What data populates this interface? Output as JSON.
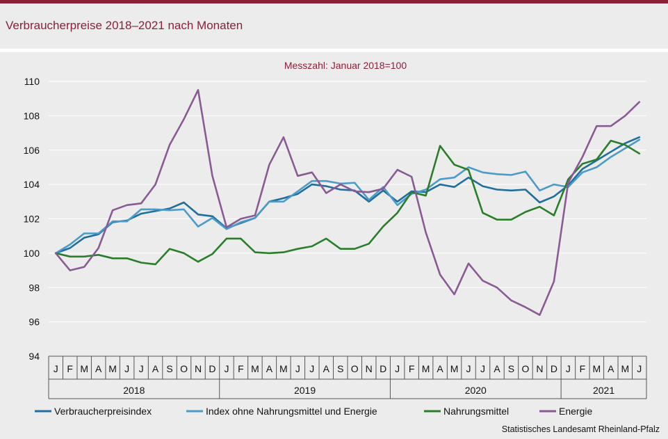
{
  "title": "Verbraucherpreise 2018–2021 nach Monaten",
  "credit": "Statistisches Landesamt Rheinland-Pfalz",
  "colors": {
    "accent": "#8b1f3a",
    "Verbraucherpreisindex": "#1f6e9e",
    "Index ohne Nahrungsmittel und Energie": "#4c9ac9",
    "Nahrungsmittel": "#2a7d2a",
    "Energie": "#8a5a95"
  },
  "chart_data": {
    "type": "line",
    "subtitle": "Messzahl:  Januar  2018=100",
    "ylim": [
      94,
      110
    ],
    "yticks": [
      "94",
      "96",
      "98",
      "100",
      "102",
      "104",
      "106",
      "108",
      "110"
    ],
    "month_labels": [
      "J",
      "F",
      "M",
      "A",
      "M",
      "J",
      "J",
      "A",
      "S",
      "O",
      "N",
      "D",
      "J",
      "F",
      "M",
      "A",
      "M",
      "J",
      "J",
      "A",
      "S",
      "O",
      "N",
      "D",
      "J",
      "F",
      "M",
      "A",
      "M",
      "J",
      "J",
      "A",
      "S",
      "O",
      "N",
      "D",
      "J",
      "F",
      "M",
      "A",
      "M",
      "J"
    ],
    "years": [
      "2018",
      "2019",
      "2020",
      "2021"
    ],
    "grid": true,
    "legend_position": "bottom",
    "series": [
      {
        "name": "Verbraucherpreisindex",
        "values": [
          100.0,
          100.3,
          100.9,
          101.1,
          101.8,
          101.9,
          102.3,
          102.45,
          102.6,
          102.95,
          102.25,
          102.15,
          101.45,
          101.75,
          102.05,
          103.0,
          103.2,
          103.45,
          104.0,
          103.9,
          103.7,
          103.65,
          103.0,
          103.65,
          103.0,
          103.6,
          103.55,
          104.0,
          103.85,
          104.4,
          103.9,
          103.7,
          103.65,
          103.7,
          102.95,
          103.3,
          103.95,
          104.9,
          105.4,
          105.9,
          106.4,
          106.75
        ]
      },
      {
        "name": "Index ohne Nahrungsmittel und Energie",
        "values": [
          100.0,
          100.5,
          101.15,
          101.15,
          101.85,
          101.85,
          102.55,
          102.55,
          102.5,
          102.55,
          101.55,
          102.05,
          101.4,
          101.8,
          102.05,
          103.0,
          103.0,
          103.6,
          104.2,
          104.2,
          104.05,
          104.1,
          103.1,
          103.85,
          102.8,
          103.45,
          103.7,
          104.3,
          104.4,
          105.0,
          104.7,
          104.6,
          104.55,
          104.75,
          103.65,
          104.0,
          103.85,
          104.7,
          105.0,
          105.6,
          106.1,
          106.6
        ]
      },
      {
        "name": "Nahrungsmittel",
        "values": [
          100.0,
          99.8,
          99.8,
          99.9,
          99.7,
          99.7,
          99.45,
          99.35,
          100.25,
          100.0,
          99.5,
          99.95,
          100.85,
          100.85,
          100.05,
          100.0,
          100.05,
          100.25,
          100.4,
          100.85,
          100.25,
          100.25,
          100.55,
          101.55,
          102.35,
          103.55,
          103.35,
          106.25,
          105.15,
          104.85,
          102.35,
          101.95,
          101.95,
          102.4,
          102.7,
          102.2,
          104.3,
          105.2,
          105.45,
          106.55,
          106.3,
          105.8
        ]
      },
      {
        "name": "Energie",
        "values": [
          100.0,
          99.0,
          99.2,
          100.3,
          102.5,
          102.8,
          102.9,
          104.0,
          106.3,
          107.8,
          109.5,
          104.5,
          101.5,
          102.0,
          102.2,
          105.15,
          106.75,
          104.5,
          104.7,
          103.5,
          104.0,
          103.6,
          103.55,
          103.75,
          104.85,
          104.45,
          101.2,
          98.75,
          97.6,
          99.4,
          98.4,
          98.0,
          97.25,
          96.85,
          96.4,
          98.35,
          104.1,
          105.6,
          107.4,
          107.4,
          108.0,
          108.8
        ]
      }
    ]
  }
}
